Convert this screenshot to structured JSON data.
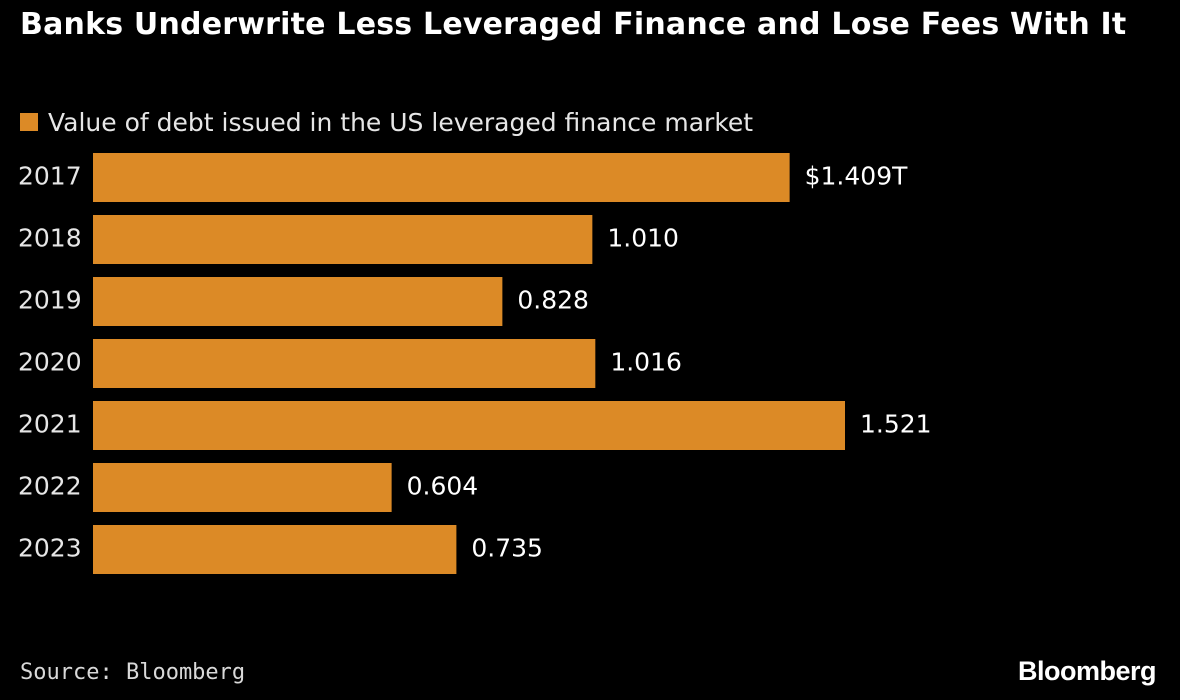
{
  "colors": {
    "background": "#000000",
    "bar": "#dc8a26",
    "text": "#ffffff",
    "muted": "#d9d9d9"
  },
  "chart_data": {
    "type": "bar",
    "orientation": "horizontal",
    "title": "Banks Underwrite Less Leveraged Finance and Lose Fees With It",
    "legend": [
      "Value of debt issued in the US leveraged finance market"
    ],
    "legend_position": "top-left",
    "categories": [
      "2017",
      "2018",
      "2019",
      "2020",
      "2021",
      "2022",
      "2023"
    ],
    "values": [
      1.409,
      1.01,
      0.828,
      1.016,
      1.521,
      0.604,
      0.735
    ],
    "value_labels": [
      "$1.409T",
      "1.010",
      "0.828",
      "1.016",
      "1.521",
      "0.604",
      "0.735"
    ],
    "xlim": [
      0,
      1.521
    ],
    "grid": false,
    "source": "Source: Bloomberg",
    "brand": "Bloomberg"
  }
}
